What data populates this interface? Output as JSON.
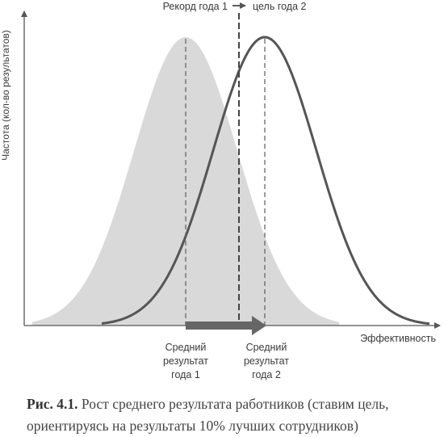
{
  "diagram": {
    "y_axis_label": "Частота (кол-во результатов)",
    "x_axis_label": "Эффективность",
    "top_label_left": "Рекорд года 1",
    "top_label_right": "цель года 2",
    "mean1_label": [
      "Средний",
      "результат",
      "года 1"
    ],
    "mean2_label": [
      "Средний",
      "результат",
      "года 2"
    ],
    "colors": {
      "curve1_fill": "#d9d9d9",
      "curve2_stroke": "#555555",
      "axis": "#555555",
      "arrow": "#666666"
    }
  },
  "caption": {
    "number": "Рис. 4.1.",
    "text": "Рост среднего результата работников (ставим цель, ориентируясь на результаты 10% лучших сотрудников)"
  }
}
